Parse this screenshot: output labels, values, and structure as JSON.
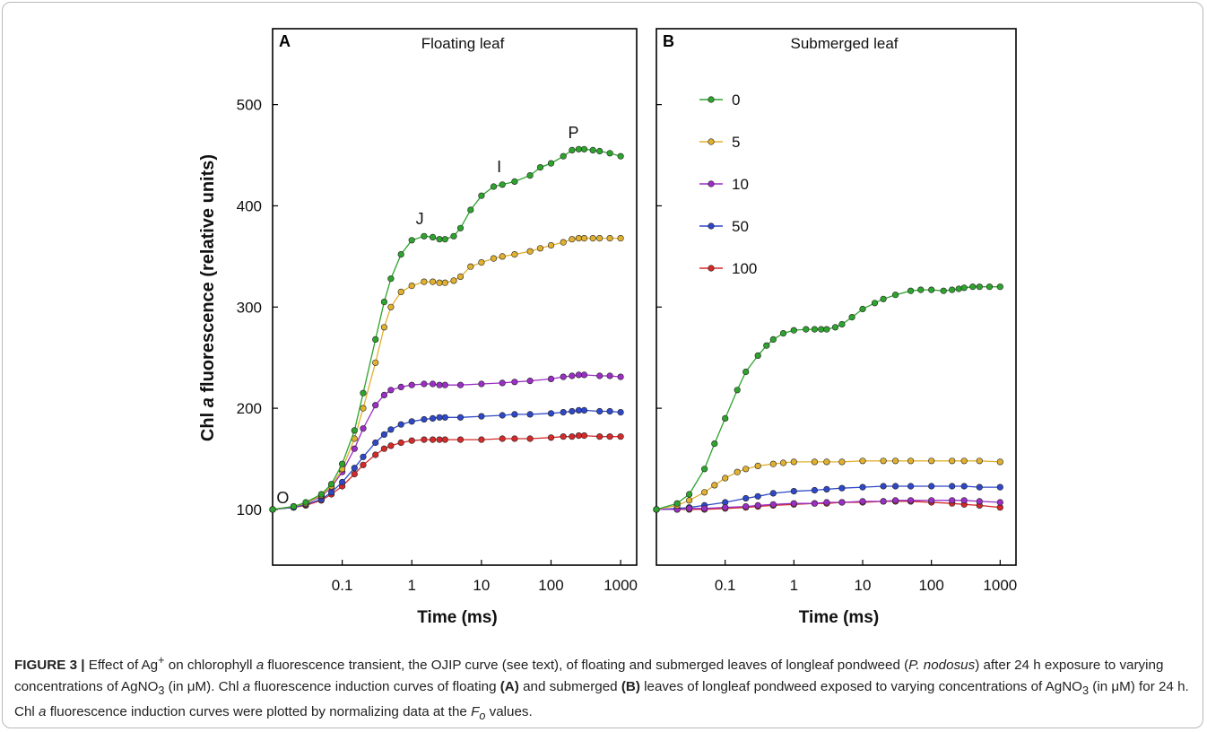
{
  "chart_data": [
    {
      "type": "line",
      "panel_label": "A",
      "title": "Floating leaf",
      "xlabel": "Time (ms)",
      "ylabel_pre": "Chl ",
      "ylabel_italic": "a",
      "ylabel_post": " fluorescence (relative units)",
      "xscale": "log",
      "xlim": [
        0.01,
        1700
      ],
      "ylim": [
        45,
        575
      ],
      "xticks": [
        0.1,
        1,
        10,
        100,
        1000
      ],
      "xtick_labels": [
        "0.1",
        "1",
        "10",
        "100",
        "1000"
      ],
      "yticks": [
        100,
        200,
        300,
        400,
        500
      ],
      "ytick_labels": [
        "100",
        "200",
        "300",
        "400",
        "500"
      ],
      "grid": false,
      "annotations": [
        {
          "text": "O",
          "x": 0.014,
          "y": 106
        },
        {
          "text": "J",
          "x": 1.3,
          "y": 382
        },
        {
          "text": "I",
          "x": 18,
          "y": 433
        },
        {
          "text": "P",
          "x": 210,
          "y": 467
        }
      ],
      "series": [
        {
          "name": "0",
          "color": "#2ea32e",
          "x": [
            0.01,
            0.02,
            0.03,
            0.05,
            0.07,
            0.1,
            0.15,
            0.2,
            0.3,
            0.4,
            0.5,
            0.7,
            1,
            1.5,
            2,
            2.5,
            3,
            4,
            5,
            7,
            10,
            15,
            20,
            30,
            50,
            70,
            100,
            150,
            200,
            250,
            300,
            400,
            500,
            700,
            1000
          ],
          "values": [
            100,
            103,
            107,
            115,
            125,
            145,
            178,
            215,
            268,
            305,
            328,
            352,
            366,
            370,
            369,
            367,
            367,
            370,
            378,
            396,
            410,
            419,
            421,
            424,
            430,
            438,
            442,
            449,
            455,
            456,
            456,
            455,
            454,
            452,
            449
          ]
        },
        {
          "name": "5",
          "color": "#e0b030",
          "x": [
            0.01,
            0.02,
            0.03,
            0.05,
            0.07,
            0.1,
            0.15,
            0.2,
            0.3,
            0.4,
            0.5,
            0.7,
            1,
            1.5,
            2,
            2.5,
            3,
            4,
            5,
            7,
            10,
            15,
            20,
            30,
            50,
            70,
            100,
            150,
            200,
            250,
            300,
            400,
            500,
            700,
            1000
          ],
          "values": [
            100,
            103,
            106,
            114,
            123,
            140,
            170,
            200,
            245,
            280,
            300,
            315,
            321,
            325,
            325,
            324,
            324,
            326,
            330,
            340,
            344,
            348,
            350,
            352,
            355,
            358,
            361,
            364,
            367,
            368,
            368,
            368,
            368,
            368,
            368
          ]
        },
        {
          "name": "10",
          "color": "#9b2fc4",
          "x": [
            0.01,
            0.02,
            0.03,
            0.05,
            0.07,
            0.1,
            0.15,
            0.2,
            0.3,
            0.4,
            0.5,
            0.7,
            1,
            1.5,
            2,
            2.5,
            3,
            5,
            10,
            20,
            30,
            50,
            100,
            150,
            200,
            250,
            300,
            500,
            700,
            1000
          ],
          "values": [
            100,
            103,
            106,
            113,
            122,
            137,
            160,
            180,
            203,
            213,
            218,
            221,
            223,
            224,
            224,
            223,
            223,
            223,
            224,
            225,
            226,
            227,
            229,
            231,
            232,
            233,
            233,
            232,
            232,
            231
          ]
        },
        {
          "name": "50",
          "color": "#2f48c8",
          "x": [
            0.01,
            0.02,
            0.03,
            0.05,
            0.07,
            0.1,
            0.15,
            0.2,
            0.3,
            0.4,
            0.5,
            0.7,
            1,
            1.5,
            2,
            2.5,
            3,
            5,
            10,
            20,
            30,
            50,
            100,
            150,
            200,
            250,
            300,
            500,
            700,
            1000
          ],
          "values": [
            100,
            102,
            105,
            110,
            117,
            127,
            141,
            152,
            166,
            174,
            179,
            184,
            187,
            189,
            190,
            191,
            191,
            191,
            192,
            193,
            194,
            194,
            195,
            196,
            197,
            198,
            198,
            197,
            197,
            196
          ]
        },
        {
          "name": "100",
          "color": "#d42a2a",
          "x": [
            0.01,
            0.02,
            0.03,
            0.05,
            0.07,
            0.1,
            0.15,
            0.2,
            0.3,
            0.4,
            0.5,
            0.7,
            1,
            1.5,
            2,
            2.5,
            3,
            5,
            10,
            20,
            30,
            50,
            100,
            150,
            200,
            250,
            300,
            500,
            700,
            1000
          ],
          "values": [
            100,
            102,
            104,
            109,
            115,
            123,
            135,
            144,
            154,
            160,
            163,
            166,
            168,
            169,
            169,
            169,
            169,
            169,
            169,
            170,
            170,
            170,
            171,
            172,
            172,
            173,
            173,
            172,
            172,
            172
          ]
        }
      ]
    },
    {
      "type": "line",
      "panel_label": "B",
      "title": "Submerged leaf",
      "xlabel": "Time (ms)",
      "xscale": "log",
      "xlim": [
        0.01,
        1700
      ],
      "ylim": [
        45,
        575
      ],
      "xticks": [
        0.1,
        1,
        10,
        100,
        1000
      ],
      "xtick_labels": [
        "0.1",
        "1",
        "10",
        "100",
        "1000"
      ],
      "yticks": [
        100,
        200,
        300,
        400,
        500
      ],
      "grid": false,
      "legend": {
        "position": "top-left",
        "items": [
          "0",
          "5",
          "10",
          "50",
          "100"
        ]
      },
      "series": [
        {
          "name": "0",
          "color": "#2ea32e",
          "x": [
            0.01,
            0.02,
            0.03,
            0.05,
            0.07,
            0.1,
            0.15,
            0.2,
            0.3,
            0.4,
            0.5,
            0.7,
            1,
            1.5,
            2,
            2.5,
            3,
            4,
            5,
            7,
            10,
            15,
            20,
            30,
            50,
            70,
            100,
            150,
            200,
            250,
            300,
            400,
            500,
            700,
            1000
          ],
          "values": [
            100,
            106,
            115,
            140,
            165,
            190,
            218,
            236,
            252,
            262,
            268,
            274,
            277,
            278,
            278,
            278,
            278,
            280,
            283,
            290,
            298,
            304,
            308,
            312,
            316,
            317,
            317,
            316,
            317,
            318,
            319,
            320,
            320,
            320,
            320
          ]
        },
        {
          "name": "5",
          "color": "#e0b030",
          "x": [
            0.01,
            0.02,
            0.03,
            0.05,
            0.07,
            0.1,
            0.15,
            0.2,
            0.3,
            0.5,
            0.7,
            1,
            2,
            3,
            5,
            10,
            20,
            30,
            50,
            100,
            200,
            300,
            500,
            1000
          ],
          "values": [
            100,
            104,
            109,
            117,
            124,
            131,
            137,
            140,
            143,
            145,
            146,
            147,
            147,
            147,
            147,
            148,
            148,
            148,
            148,
            148,
            148,
            148,
            148,
            147
          ]
        },
        {
          "name": "10",
          "color": "#9b2fc4",
          "x": [
            0.01,
            0.02,
            0.03,
            0.05,
            0.1,
            0.2,
            0.3,
            0.5,
            1,
            2,
            3,
            5,
            10,
            20,
            30,
            50,
            100,
            200,
            300,
            500,
            1000
          ],
          "values": [
            100,
            100,
            101,
            101,
            102,
            103,
            104,
            105,
            106,
            106,
            107,
            107,
            108,
            108,
            109,
            109,
            109,
            109,
            109,
            108,
            107
          ]
        },
        {
          "name": "50",
          "color": "#2f48c8",
          "x": [
            0.01,
            0.02,
            0.03,
            0.05,
            0.1,
            0.2,
            0.3,
            0.5,
            1,
            2,
            3,
            5,
            10,
            20,
            30,
            50,
            100,
            200,
            300,
            500,
            1000
          ],
          "values": [
            100,
            101,
            102,
            104,
            107,
            111,
            113,
            116,
            118,
            119,
            120,
            121,
            122,
            123,
            123,
            123,
            123,
            123,
            123,
            122,
            122
          ]
        },
        {
          "name": "100",
          "color": "#d42a2a",
          "x": [
            0.01,
            0.02,
            0.03,
            0.05,
            0.1,
            0.2,
            0.3,
            0.5,
            1,
            2,
            3,
            5,
            10,
            20,
            30,
            50,
            100,
            200,
            300,
            500,
            1000
          ],
          "values": [
            100,
            100,
            100,
            100,
            101,
            102,
            103,
            104,
            105,
            106,
            106,
            107,
            107,
            108,
            108,
            108,
            107,
            106,
            105,
            104,
            102
          ]
        }
      ]
    }
  ],
  "caption": {
    "fig_label": "FIGURE 3 |",
    "p1": " Effect of Ag",
    "sup_plus": "+",
    "p2": " on chlorophyll ",
    "a1": "a",
    "p3": " fluorescence transient, the OJIP curve (see text), of floating and submerged leaves of longleaf pondweed (",
    "species": "P. nodosus",
    "p4": ") after 24 h exposure to varying concentrations of AgNO",
    "sub3a": "3",
    "p5": " (in μM). Chl ",
    "a2": "a",
    "p6": " fluorescence induction curves of floating ",
    "bA": "(A)",
    "p7": " and submerged ",
    "bB": "(B)",
    "p8": " leaves of longleaf pondweed exposed to varying concentrations of AgNO",
    "sub3b": "3",
    "p9": " (in μM) for 24 h. Chl ",
    "a3": "a",
    "p10": " fluorescence induction curves were plotted by normalizing data at the ",
    "fo_f": "F",
    "fo_o": "o",
    "p11": " values."
  }
}
